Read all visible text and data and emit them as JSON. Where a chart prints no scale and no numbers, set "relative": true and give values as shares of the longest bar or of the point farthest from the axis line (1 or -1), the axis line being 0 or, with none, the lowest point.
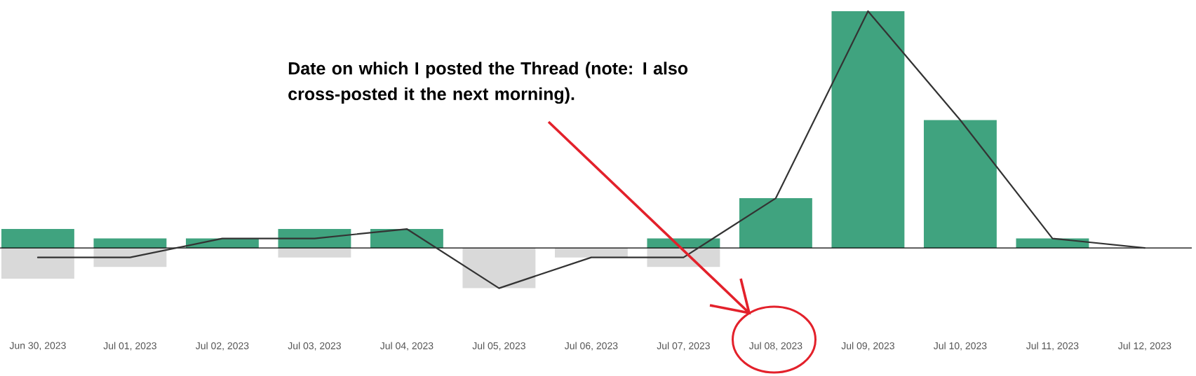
{
  "chart_data": {
    "type": "bar",
    "relative": true,
    "categories": [
      "Jun 30, 2023",
      "Jul 01, 2023",
      "Jul 02, 2023",
      "Jul 03, 2023",
      "Jul 04, 2023",
      "Jul 05, 2023",
      "Jul 06, 2023",
      "Jul 07, 2023",
      "Jul 08, 2023",
      "Jul 09, 2023",
      "Jul 10, 2023",
      "Jul 11, 2023",
      "Jul 12, 2023"
    ],
    "series": [
      {
        "color": "#40a37f",
        "values": [
          0.08,
          0.04,
          0.04,
          0.08,
          0.08,
          null,
          null,
          0.04,
          0.21,
          1,
          0.54,
          0.04,
          null
        ]
      },
      {
        "color": "#d9d9d9",
        "values": [
          -0.13,
          -0.08,
          null,
          -0.04,
          null,
          -0.17,
          -0.04,
          -0.08,
          null,
          null,
          null,
          null,
          null
        ]
      },
      {
        "type": "line",
        "color": "#333333",
        "values": [
          -0.04,
          -0.04,
          0.04,
          0.04,
          0.08,
          -0.17,
          -0.04,
          -0.04,
          0.21,
          1,
          0.54,
          0.04,
          0
        ]
      }
    ],
    "annotations": [
      "Date on which I posted the Thread (note: I also cross-posted it the next morning)."
    ]
  }
}
